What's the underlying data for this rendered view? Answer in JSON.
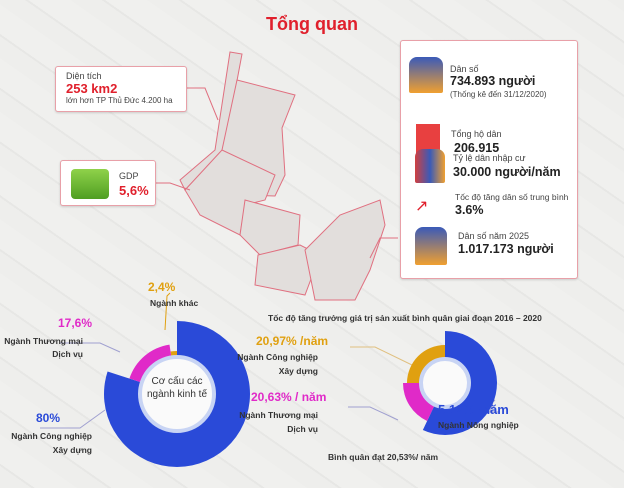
{
  "title": "Tổng quan",
  "area": {
    "label": "Diện tích",
    "value": "253 km2",
    "note": "lớn hơn TP Thủ Đức 4.200 ha"
  },
  "gdp": {
    "label": "GDP",
    "value": "5,6%"
  },
  "stats": [
    {
      "icon": "people-icon",
      "label": "Dân số",
      "value": "734.893 người",
      "note": "(Thống kê đến 31/12/2020)"
    },
    {
      "icon": "household-book-icon",
      "label": "Tổng hộ dân",
      "value": "206.915"
    },
    {
      "icon": "migrants-icon",
      "label": "Tỷ lệ dân nhập cư",
      "value": "30.000 người/năm"
    },
    {
      "icon": "trend-up-icon",
      "label": "Tốc độ tăng dân số trung bình",
      "value": "3.6%"
    },
    {
      "icon": "people-icon",
      "label": "Dân số năm 2025",
      "value": "1.017.173 người"
    }
  ],
  "chart_data": [
    {
      "type": "pie",
      "title": "Cơ cấu các ngành kinh tế",
      "unit": "%",
      "series": [
        {
          "name": "Ngành Công nghiệp Xây dựng",
          "line1": "Ngành Công nghiệp",
          "line2": "Xây dựng",
          "value": 80,
          "label": "80%",
          "color": "#2a4ad8"
        },
        {
          "name": "Ngành Thương mại Dịch vụ",
          "line1": "Ngành  Thương mại",
          "line2": "Dịch vụ",
          "value": 17.6,
          "label": "17,6%",
          "color": "#e02ac8"
        },
        {
          "name": "Ngành khác",
          "line1": "Ngành khác",
          "line2": "",
          "value": 2.4,
          "label": "2,4%",
          "color": "#e0a010"
        }
      ]
    },
    {
      "type": "pie",
      "title": "Tốc độ tăng trưởng giá trị sản xuất bình quân giai đoạn 2016 – 2020",
      "unit": "%/năm",
      "footer": "Bình quân đạt 20,53%/ năm",
      "series": [
        {
          "name": "Ngành Nông nghiệp",
          "line1": "Ngành Nông nghiệp",
          "line2": "",
          "value": 5.12,
          "label": "5,12% /năm",
          "color": "#2a4ad8"
        },
        {
          "name": "Ngành Thương mại Dịch vụ",
          "line1": "Ngành  Thương mại",
          "line2": "Dịch vụ",
          "value": 20.63,
          "label": "20,63% / năm",
          "color": "#e02ac8"
        },
        {
          "name": "Ngành Công nghiệp Xây dựng",
          "line1": "Ngành Công nghiệp",
          "line2": "Xây dựng",
          "value": 20.97,
          "label": "20,97% /năm",
          "color": "#e0a010"
        }
      ]
    }
  ]
}
